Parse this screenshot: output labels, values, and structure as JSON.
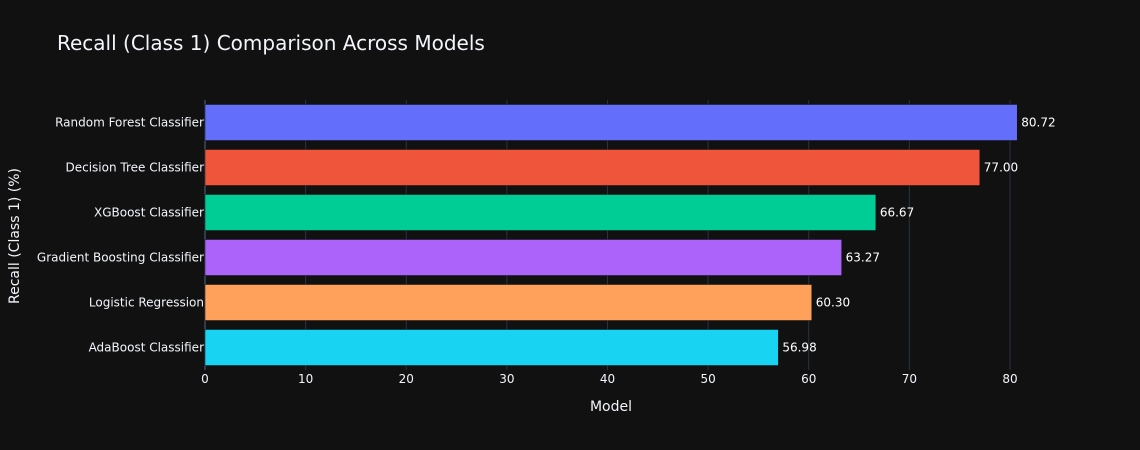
{
  "chart_data": {
    "type": "bar",
    "orientation": "horizontal",
    "title": "Recall (Class 1) Comparison Across Models",
    "xlabel": "Model",
    "ylabel": "Recall (Class 1) (%)",
    "xlim": [
      0,
      84.97
    ],
    "x_ticks": [
      0,
      10,
      20,
      30,
      40,
      50,
      60,
      70,
      80
    ],
    "grid": true,
    "categories": [
      "Random Forest Classifier",
      "Decision Tree Classifier",
      "XGBoost Classifier",
      "Gradient Boosting Classifier",
      "Logistic Regression",
      "AdaBoost Classifier"
    ],
    "values": [
      80.72,
      77.0,
      66.67,
      63.27,
      60.3,
      56.98
    ],
    "data_labels": [
      "80.72",
      "77.00",
      "66.67",
      "63.27",
      "60.30",
      "56.98"
    ],
    "colors": [
      "#636efa",
      "#EF553B",
      "#00cc96",
      "#ab63fa",
      "#FFA15A",
      "#19d3f3"
    ]
  }
}
